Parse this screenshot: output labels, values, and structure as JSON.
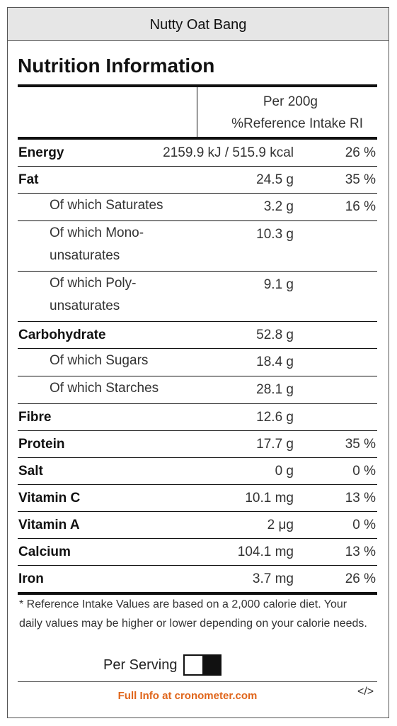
{
  "header": {
    "title": "Nutty Oat Bang"
  },
  "label": {
    "title": "Nutrition Information",
    "column_header": {
      "amount": "Per 200g",
      "ri": "%Reference Intake RI"
    }
  },
  "rows": [
    {
      "label": "Energy",
      "amount": "2159.9 kJ / 515.9 kcal",
      "ri": "26 %"
    },
    {
      "label": "Fat",
      "amount": "24.5 g",
      "ri": "35 %",
      "sub": [
        {
          "label": "Of which Saturates",
          "amount": "3.2 g",
          "ri": "16 %"
        },
        {
          "label": "Of which Mono-unsaturates",
          "amount": "10.3 g"
        },
        {
          "label": "Of which Poly-unsaturates",
          "amount": "9.1 g"
        }
      ]
    },
    {
      "label": "Carbohydrate",
      "amount": "52.8 g",
      "sub": [
        {
          "label": "Of which Sugars",
          "amount": "18.4 g"
        },
        {
          "label": "Of which Starches",
          "amount": "28.1 g"
        }
      ]
    },
    {
      "label": "Fibre",
      "amount": "12.6 g"
    },
    {
      "label": "Protein",
      "amount": "17.7 g",
      "ri": "35 %"
    },
    {
      "label": "Salt",
      "amount": "0 g",
      "ri": "0 %"
    },
    {
      "label": "Vitamin C",
      "amount": "10.1 mg",
      "ri": "13 %"
    },
    {
      "label": "Vitamin A",
      "amount": "2 μg",
      "ri": "0 %"
    },
    {
      "label": "Calcium",
      "amount": "104.1 mg",
      "ri": "13 %"
    },
    {
      "label": "Iron",
      "amount": "3.7 mg",
      "ri": "26 %"
    }
  ],
  "footnote": "* Reference Intake Values are based on a 2,000 calorie diet. Your daily values may be higher or lower depending on your calorie needs.",
  "toggle": {
    "label": "Per Serving"
  },
  "footer": {
    "link": "Full Info at cronometer.com",
    "embed": "</>"
  }
}
